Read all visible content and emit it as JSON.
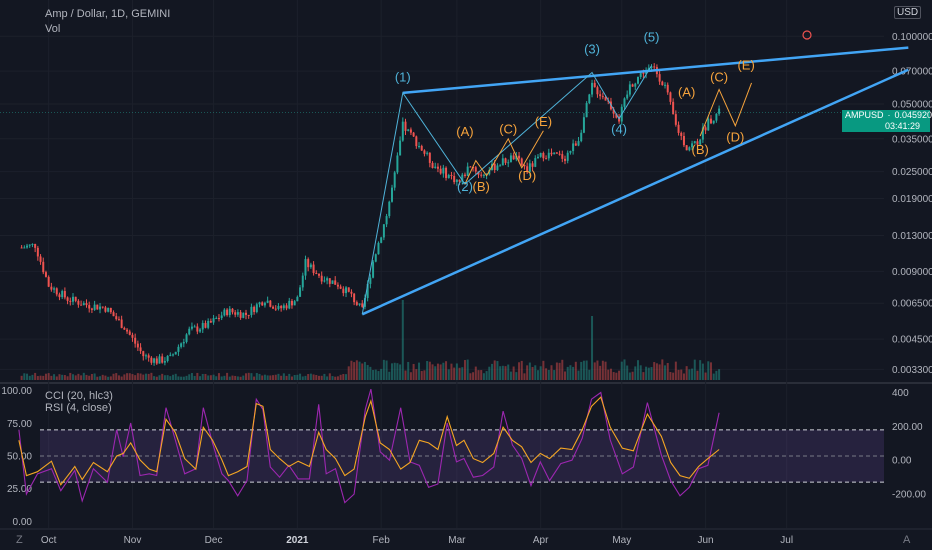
{
  "header": {
    "title": "Amp / Dollar, 1D, GEMINI",
    "volume_label": "Vol",
    "currency": "USD"
  },
  "indicators": {
    "cci_label": "CCI (20, hlc3)",
    "rsi_label": "RSI (4, close)"
  },
  "price_tag": {
    "symbol": "AMPUSD",
    "price": "0.045920",
    "countdown": "03:41:29"
  },
  "corner_labels": {
    "left": "Z",
    "right": "A"
  },
  "colors": {
    "background": "#131722",
    "up": "#26a69a",
    "down": "#ef5350",
    "trendline": "#42a5f5",
    "wave_primary": "#4fb3d9",
    "wave_secondary": "#f6a33c",
    "rsi_band": "#7e57c2",
    "cci": "#9c27b0",
    "rsi": "#f5a623"
  },
  "chart_data": [
    {
      "type": "candlestick",
      "title": "Amp / Dollar, 1D, GEMINI",
      "y_scale": "log",
      "ylim": [
        0.0029,
        0.145
      ],
      "y_ticks": [
        "0.100000",
        "0.070000",
        "0.050000",
        "0.035000",
        "0.025000",
        "0.019000",
        "0.013000",
        "0.009000",
        "0.006500",
        "0.004500",
        "0.003300"
      ],
      "x_ticks": [
        "Oct",
        "Nov",
        "Dec",
        "2021",
        "Feb",
        "Mar",
        "Apr",
        "May",
        "Jun",
        "Jul"
      ],
      "close_series_keypoints": [
        {
          "date": "2020-09-21",
          "close": 0.0115
        },
        {
          "date": "2020-09-26",
          "close": 0.0118
        },
        {
          "date": "2020-10-01",
          "close": 0.0078
        },
        {
          "date": "2020-10-08",
          "close": 0.0068
        },
        {
          "date": "2020-10-15",
          "close": 0.0064
        },
        {
          "date": "2020-10-22",
          "close": 0.0062
        },
        {
          "date": "2020-10-29",
          "close": 0.0051
        },
        {
          "date": "2020-11-05",
          "close": 0.0038
        },
        {
          "date": "2020-11-10",
          "close": 0.0036
        },
        {
          "date": "2020-11-15",
          "close": 0.0037
        },
        {
          "date": "2020-11-22",
          "close": 0.0049
        },
        {
          "date": "2020-11-29",
          "close": 0.0052
        },
        {
          "date": "2020-12-06",
          "close": 0.006
        },
        {
          "date": "2020-12-13",
          "close": 0.0058
        },
        {
          "date": "2020-12-20",
          "close": 0.0068
        },
        {
          "date": "2020-12-25",
          "close": 0.0061
        },
        {
          "date": "2021-01-01",
          "close": 0.0068
        },
        {
          "date": "2021-01-04",
          "close": 0.0098
        },
        {
          "date": "2021-01-10",
          "close": 0.0085
        },
        {
          "date": "2021-01-16",
          "close": 0.0079
        },
        {
          "date": "2021-01-21",
          "close": 0.007
        },
        {
          "date": "2021-01-25",
          "close": 0.006
        },
        {
          "date": "2021-01-29",
          "close": 0.01
        },
        {
          "date": "2021-02-03",
          "close": 0.016
        },
        {
          "date": "2021-02-06",
          "close": 0.024
        },
        {
          "date": "2021-02-09",
          "close": 0.04
        },
        {
          "date": "2021-02-14",
          "close": 0.034
        },
        {
          "date": "2021-02-20",
          "close": 0.027
        },
        {
          "date": "2021-02-26",
          "close": 0.024
        },
        {
          "date": "2021-03-02",
          "close": 0.0225
        },
        {
          "date": "2021-03-06",
          "close": 0.027
        },
        {
          "date": "2021-03-10",
          "close": 0.024
        },
        {
          "date": "2021-03-16",
          "close": 0.027
        },
        {
          "date": "2021-03-22",
          "close": 0.029
        },
        {
          "date": "2021-03-27",
          "close": 0.0255
        },
        {
          "date": "2021-04-02",
          "close": 0.03
        },
        {
          "date": "2021-04-10",
          "close": 0.029
        },
        {
          "date": "2021-04-15",
          "close": 0.035
        },
        {
          "date": "2021-04-20",
          "close": 0.06
        },
        {
          "date": "2021-04-25",
          "close": 0.053
        },
        {
          "date": "2021-04-30",
          "close": 0.043
        },
        {
          "date": "2021-05-04",
          "close": 0.06
        },
        {
          "date": "2021-05-09",
          "close": 0.07
        },
        {
          "date": "2021-05-13",
          "close": 0.072
        },
        {
          "date": "2021-05-17",
          "close": 0.06
        },
        {
          "date": "2021-05-21",
          "close": 0.04
        },
        {
          "date": "2021-05-25",
          "close": 0.032
        },
        {
          "date": "2021-05-29",
          "close": 0.034
        },
        {
          "date": "2021-06-02",
          "close": 0.042
        },
        {
          "date": "2021-06-06",
          "close": 0.0459
        }
      ],
      "volume_spikes": [
        {
          "date": "2021-02-09",
          "relative": 1.0
        },
        {
          "date": "2021-04-20",
          "relative": 0.8
        }
      ],
      "trendlines": [
        {
          "name": "upper",
          "from": {
            "date": "2021-02-09",
            "price": 0.056
          },
          "to": {
            "date": "2021-08-15",
            "price": 0.089
          }
        },
        {
          "name": "lower",
          "from": {
            "date": "2021-01-25",
            "price": 0.0058
          },
          "to": {
            "date": "2021-08-15",
            "price": 0.071
          }
        }
      ],
      "wave_labels": [
        {
          "text": "(1)",
          "date": "2021-02-09",
          "price": 0.063,
          "color": "primary"
        },
        {
          "text": "(2)",
          "date": "2021-03-04",
          "price": 0.0205,
          "color": "primary"
        },
        {
          "text": "(3)",
          "date": "2021-04-20",
          "price": 0.084,
          "color": "primary"
        },
        {
          "text": "(4)",
          "date": "2021-04-30",
          "price": 0.037,
          "color": "primary"
        },
        {
          "text": "(5)",
          "date": "2021-05-12",
          "price": 0.095,
          "color": "primary"
        },
        {
          "text": "(A)",
          "date": "2021-03-04",
          "price": 0.036,
          "color": "secondary"
        },
        {
          "text": "(B)",
          "date": "2021-03-10",
          "price": 0.0205,
          "color": "secondary"
        },
        {
          "text": "(C)",
          "date": "2021-03-20",
          "price": 0.037,
          "color": "secondary"
        },
        {
          "text": "(D)",
          "date": "2021-03-27",
          "price": 0.023,
          "color": "secondary"
        },
        {
          "text": "(E)",
          "date": "2021-04-02",
          "price": 0.04,
          "color": "secondary"
        },
        {
          "text": "(A)",
          "date": "2021-05-25",
          "price": 0.054,
          "color": "secondary"
        },
        {
          "text": "(B)",
          "date": "2021-05-30",
          "price": 0.03,
          "color": "secondary"
        },
        {
          "text": "(C)",
          "date": "2021-06-06",
          "price": 0.063,
          "color": "secondary"
        },
        {
          "text": "(D)",
          "date": "2021-06-12",
          "price": 0.034,
          "color": "secondary"
        },
        {
          "text": "(E)",
          "date": "2021-06-16",
          "price": 0.071,
          "color": "secondary"
        }
      ]
    },
    {
      "type": "line",
      "title": "CCI (20, hlc3) / RSI (4, close)",
      "left_axis": {
        "ylim": [
          -5,
          105
        ],
        "ticks": [
          "100.00",
          "75.00",
          "50.00",
          "25.00",
          "0.00"
        ]
      },
      "right_axis": {
        "ylim": [
          -400,
          450
        ],
        "ticks": [
          "400",
          "200.00",
          "0.00",
          "-200.00"
        ]
      },
      "band": {
        "upper": 70,
        "lower": 30,
        "middle": 50
      },
      "series": [
        {
          "name": "CCI",
          "axis": "right",
          "keypoints": [
            [
              0,
              180
            ],
            [
              8,
              -200
            ],
            [
              20,
              -80
            ],
            [
              35,
              -50
            ],
            [
              45,
              -180
            ],
            [
              60,
              -60
            ],
            [
              68,
              -240
            ],
            [
              80,
              -50
            ],
            [
              95,
              -130
            ],
            [
              105,
              180
            ],
            [
              112,
              20
            ],
            [
              120,
              220
            ],
            [
              130,
              -90
            ],
            [
              140,
              -80
            ],
            [
              148,
              -90
            ],
            [
              158,
              310
            ],
            [
              168,
              120
            ],
            [
              178,
              -80
            ],
            [
              190,
              -50
            ],
            [
              198,
              310
            ],
            [
              208,
              100
            ],
            [
              218,
              -80
            ],
            [
              225,
              -120
            ],
            [
              235,
              -210
            ],
            [
              245,
              -120
            ],
            [
              255,
              360
            ],
            [
              262,
              300
            ],
            [
              270,
              -40
            ],
            [
              280,
              -100
            ],
            [
              290,
              -30
            ],
            [
              300,
              -110
            ],
            [
              312,
              -110
            ],
            [
              322,
              330
            ],
            [
              330,
              -80
            ],
            [
              340,
              -50
            ],
            [
              350,
              -250
            ],
            [
              360,
              -200
            ],
            [
              372,
              300
            ],
            [
              378,
              420
            ],
            [
              388,
              50
            ],
            [
              398,
              0
            ],
            [
              410,
              310
            ],
            [
              420,
              -10
            ],
            [
              430,
              -30
            ],
            [
              440,
              -160
            ],
            [
              450,
              -140
            ],
            [
              460,
              220
            ],
            [
              470,
              -10
            ],
            [
              478,
              10
            ],
            [
              488,
              -100
            ],
            [
              498,
              -90
            ],
            [
              510,
              -40
            ],
            [
              520,
              290
            ],
            [
              530,
              90
            ],
            [
              540,
              10
            ],
            [
              550,
              -150
            ],
            [
              560,
              -10
            ],
            [
              570,
              -120
            ],
            [
              582,
              -20
            ],
            [
              594,
              0
            ],
            [
              605,
              130
            ],
            [
              615,
              360
            ],
            [
              625,
              400
            ],
            [
              635,
              120
            ],
            [
              648,
              -80
            ],
            [
              660,
              -40
            ],
            [
              675,
              340
            ],
            [
              690,
              30
            ],
            [
              700,
              -120
            ],
            [
              710,
              -210
            ],
            [
              720,
              -160
            ],
            [
              730,
              -50
            ],
            [
              740,
              -30
            ],
            [
              752,
              280
            ]
          ]
        },
        {
          "name": "RSI",
          "axis": "left",
          "keypoints": [
            [
              0,
              62
            ],
            [
              8,
              35
            ],
            [
              20,
              38
            ],
            [
              35,
              46
            ],
            [
              45,
              28
            ],
            [
              60,
              42
            ],
            [
              68,
              32
            ],
            [
              80,
              45
            ],
            [
              95,
              38
            ],
            [
              105,
              50
            ],
            [
              112,
              52
            ],
            [
              120,
              60
            ],
            [
              130,
              47
            ],
            [
              140,
              40
            ],
            [
              148,
              38
            ],
            [
              158,
              78
            ],
            [
              168,
              68
            ],
            [
              178,
              48
            ],
            [
              190,
              40
            ],
            [
              198,
              72
            ],
            [
              208,
              62
            ],
            [
              218,
              47
            ],
            [
              225,
              35
            ],
            [
              235,
              38
            ],
            [
              245,
              42
            ],
            [
              255,
              90
            ],
            [
              262,
              88
            ],
            [
              270,
              55
            ],
            [
              280,
              48
            ],
            [
              290,
              42
            ],
            [
              300,
              46
            ],
            [
              312,
              42
            ],
            [
              322,
              68
            ],
            [
              330,
              55
            ],
            [
              340,
              48
            ],
            [
              350,
              35
            ],
            [
              360,
              40
            ],
            [
              372,
              80
            ],
            [
              378,
              92
            ],
            [
              388,
              60
            ],
            [
              398,
              55
            ],
            [
              410,
              40
            ],
            [
              420,
              45
            ],
            [
              430,
              62
            ],
            [
              440,
              60
            ],
            [
              450,
              55
            ],
            [
              460,
              80
            ],
            [
              470,
              58
            ],
            [
              478,
              62
            ],
            [
              488,
              48
            ],
            [
              498,
              45
            ],
            [
              510,
              52
            ],
            [
              520,
              72
            ],
            [
              530,
              62
            ],
            [
              540,
              57
            ],
            [
              550,
              45
            ],
            [
              560,
              52
            ],
            [
              570,
              48
            ],
            [
              582,
              56
            ],
            [
              594,
              55
            ],
            [
              605,
              70
            ],
            [
              615,
              88
            ],
            [
              625,
              95
            ],
            [
              635,
              72
            ],
            [
              648,
              56
            ],
            [
              660,
              54
            ],
            [
              675,
              82
            ],
            [
              690,
              65
            ],
            [
              700,
              45
            ],
            [
              710,
              35
            ],
            [
              720,
              33
            ],
            [
              730,
              42
            ],
            [
              740,
              48
            ],
            [
              752,
              55
            ]
          ]
        }
      ]
    }
  ]
}
